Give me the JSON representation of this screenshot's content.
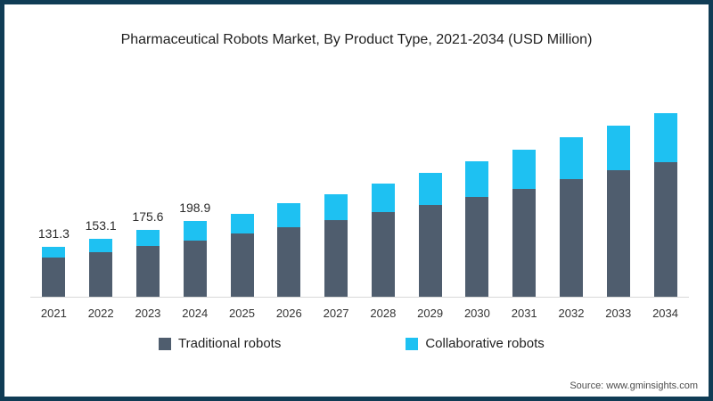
{
  "frame": {
    "border_color": "#103c55",
    "background": "#ffffff"
  },
  "title": "Pharmaceutical Robots Market, By Product Type, 2021-2034 (USD Million)",
  "legend": [
    {
      "label": "Traditional robots",
      "color": "#4f5d6e"
    },
    {
      "label": "Collaborative robots",
      "color": "#1ec1f2"
    }
  ],
  "source": "Source: www.gminsights.com",
  "chart_data": {
    "type": "bar",
    "stacked": true,
    "title": "Pharmaceutical Robots Market, By Product Type, 2021-2034 (USD Million)",
    "unit": "USD Million",
    "categories": [
      "2021",
      "2022",
      "2023",
      "2024",
      "2025",
      "2026",
      "2027",
      "2028",
      "2029",
      "2030",
      "2031",
      "2032",
      "2033",
      "2034"
    ],
    "series": [
      {
        "name": "Traditional robots",
        "color": "#4f5d6e",
        "values": [
          102.7,
          118.4,
          134.7,
          148.7,
          166.5,
          184.0,
          202.4,
          221.8,
          241.2,
          262.2,
          284.9,
          309.9,
          332.3,
          354.9
        ]
      },
      {
        "name": "Collaborative robots",
        "color": "#1ec1f2",
        "values": [
          28.6,
          34.7,
          40.9,
          50.2,
          52.4,
          61.2,
          66.8,
          76.4,
          83.6,
          94.6,
          101.2,
          109.8,
          118.9,
          128.9
        ]
      }
    ],
    "totals": [
      131.3,
      153.1,
      175.6,
      198.9,
      218.9,
      245.2,
      269.2,
      298.2,
      324.8,
      356.8,
      386.1,
      419.7,
      451.2,
      483.8
    ],
    "total_labels_shown": [
      "131.3",
      "153.1",
      "175.6",
      "198.9",
      "",
      "",
      "",
      "",
      "",
      "",
      "",
      "",
      "",
      ""
    ],
    "xlabel": "",
    "ylabel": "",
    "ylim": [
      0,
      500
    ],
    "grid": false,
    "legend_position": "bottom",
    "axis_line_color": "#d9d9d9"
  }
}
